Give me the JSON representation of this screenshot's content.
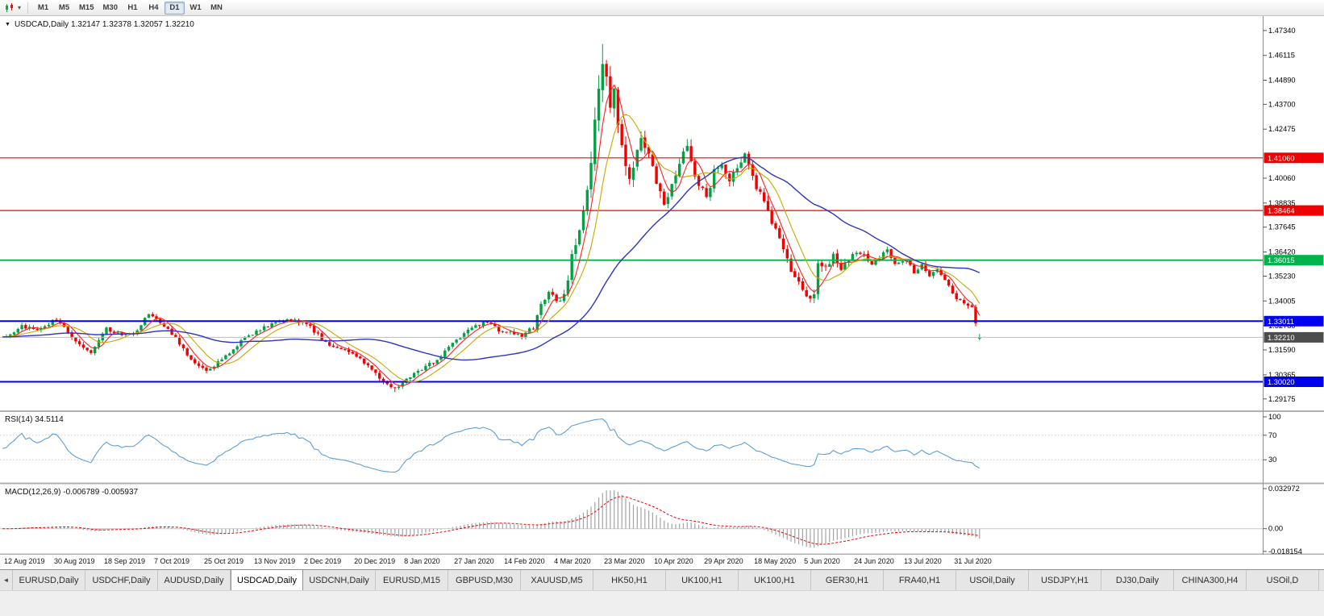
{
  "toolbar": {
    "timeframes": [
      "M1",
      "M5",
      "M15",
      "M30",
      "H1",
      "H4",
      "D1",
      "W1",
      "MN"
    ],
    "active_timeframe": "D1",
    "dropdown_glyph": "▾"
  },
  "chart": {
    "title_marker": "▼",
    "symbol_line": "USDCAD,Daily 1.32147 1.32378 1.32057 1.32210",
    "last_ohlc": {
      "o": 1.32147,
      "h": 1.32378,
      "l": 1.32057,
      "c": 1.3221
    },
    "bid": {
      "price": 1.3221,
      "label": "1.32210",
      "line_color": "#bdbdbd",
      "tag_color": "#4d4d4d"
    },
    "candle_up": "#00a245",
    "candle_down": "#f20000",
    "price_ticks": [
      "1.47340",
      "1.46115",
      "1.44890",
      "1.43700",
      "1.42475",
      "1.40060",
      "1.38835",
      "1.37645",
      "1.36420",
      "1.35230",
      "1.34005",
      "1.32780",
      "1.31590",
      "1.30365",
      "1.29175"
    ],
    "price_tick_values": [
      1.4734,
      1.46115,
      1.4489,
      1.437,
      1.42475,
      1.4006,
      1.38835,
      1.37645,
      1.3642,
      1.3523,
      1.34005,
      1.3278,
      1.3159,
      1.30365,
      1.29175
    ],
    "hlines": [
      {
        "price": 1.4106,
        "label": "1.41060",
        "color": "#f00000",
        "width": 1.2
      },
      {
        "price": 1.38464,
        "label": "1.38464",
        "color": "#f00000",
        "width": 1.2
      },
      {
        "price": 1.36015,
        "label": "1.36015",
        "color": "#00b44c",
        "width": 1.8
      },
      {
        "price": 1.33011,
        "label": "1.33011",
        "color": "#0000f0",
        "width": 2
      },
      {
        "price": 1.3002,
        "label": "1.30020",
        "color": "#0000f0",
        "width": 2
      }
    ]
  },
  "chart_data": {
    "type": "candlestick",
    "symbol": "USDCAD",
    "timeframe": "Daily",
    "candle_count": 254,
    "price_range": {
      "top": 1.4805,
      "bottom": 1.2865
    },
    "base_volatility": 0.0017,
    "close_anchors": [
      [
        0,
        1.3225
      ],
      [
        4,
        1.328
      ],
      [
        8,
        1.3255
      ],
      [
        13,
        1.331
      ],
      [
        16,
        1.325
      ],
      [
        19,
        1.3185
      ],
      [
        22,
        1.315
      ],
      [
        26,
        1.3265
      ],
      [
        30,
        1.3235
      ],
      [
        34,
        1.325
      ],
      [
        37,
        1.334
      ],
      [
        39,
        1.3305
      ],
      [
        43,
        1.324
      ],
      [
        47,
        1.3135
      ],
      [
        50,
        1.3085
      ],
      [
        52,
        1.306
      ],
      [
        55,
        1.3095
      ],
      [
        58,
        1.315
      ],
      [
        62,
        1.3215
      ],
      [
        65,
        1.3255
      ],
      [
        70,
        1.3295
      ],
      [
        74,
        1.331
      ],
      [
        78,
        1.329
      ],
      [
        82,
        1.3215
      ],
      [
        85,
        1.317
      ],
      [
        88,
        1.3165
      ],
      [
        91,
        1.313
      ],
      [
        95,
        1.3065
      ],
      [
        98,
        1.2995
      ],
      [
        101,
        1.2965
      ],
      [
        104,
        1.302
      ],
      [
        108,
        1.3065
      ],
      [
        112,
        1.311
      ],
      [
        117,
        1.3205
      ],
      [
        121,
        1.327
      ],
      [
        125,
        1.33
      ],
      [
        128,
        1.3255
      ],
      [
        131,
        1.3245
      ],
      [
        134,
        1.323
      ],
      [
        137,
        1.327
      ],
      [
        139,
        1.3395
      ],
      [
        141,
        1.344
      ],
      [
        143,
        1.3405
      ],
      [
        145,
        1.3425
      ],
      [
        147,
        1.361
      ],
      [
        149,
        1.376
      ],
      [
        151,
        1.394
      ],
      [
        153,
        1.426
      ],
      [
        154,
        1.446
      ],
      [
        155,
        1.458
      ],
      [
        156,
        1.449
      ],
      [
        157,
        1.436
      ],
      [
        158,
        1.443
      ],
      [
        159,
        1.429
      ],
      [
        160,
        1.417
      ],
      [
        161,
        1.406
      ],
      [
        162,
        1.3995
      ],
      [
        163,
        1.4085
      ],
      [
        164,
        1.416
      ],
      [
        165,
        1.423
      ],
      [
        166,
        1.418
      ],
      [
        167,
        1.412
      ],
      [
        169,
        1.3965
      ],
      [
        171,
        1.3875
      ],
      [
        173,
        1.3985
      ],
      [
        175,
        1.409
      ],
      [
        177,
        1.4165
      ],
      [
        179,
        1.4025
      ],
      [
        182,
        1.3905
      ],
      [
        184,
        1.4035
      ],
      [
        186,
        1.409
      ],
      [
        188,
        1.3985
      ],
      [
        190,
        1.406
      ],
      [
        192,
        1.4115
      ],
      [
        194,
        1.4015
      ],
      [
        195,
        1.3955
      ],
      [
        197,
        1.3895
      ],
      [
        199,
        1.3785
      ],
      [
        201,
        1.3725
      ],
      [
        203,
        1.3615
      ],
      [
        205,
        1.3505
      ],
      [
        207,
        1.3455
      ],
      [
        208,
        1.3425
      ],
      [
        209,
        1.3395
      ],
      [
        210,
        1.3415
      ],
      [
        211,
        1.359
      ],
      [
        213,
        1.3555
      ],
      [
        215,
        1.3625
      ],
      [
        217,
        1.3565
      ],
      [
        219,
        1.3605
      ],
      [
        221,
        1.3645
      ],
      [
        223,
        1.3625
      ],
      [
        225,
        1.3585
      ],
      [
        227,
        1.3615
      ],
      [
        229,
        1.3655
      ],
      [
        231,
        1.3585
      ],
      [
        234,
        1.3595
      ],
      [
        236,
        1.3545
      ],
      [
        238,
        1.358
      ],
      [
        240,
        1.3515
      ],
      [
        242,
        1.3565
      ],
      [
        244,
        1.3505
      ],
      [
        246,
        1.3445
      ],
      [
        247,
        1.3415
      ],
      [
        249,
        1.3395
      ],
      [
        251,
        1.337
      ],
      [
        252,
        1.329
      ],
      [
        253,
        1.3221
      ]
    ],
    "volatility_anchors": [
      [
        0,
        1
      ],
      [
        135,
        1
      ],
      [
        142,
        1.6
      ],
      [
        147,
        2.6
      ],
      [
        151,
        3.8
      ],
      [
        154,
        5
      ],
      [
        158,
        4.6
      ],
      [
        163,
        3.6
      ],
      [
        170,
        3
      ],
      [
        178,
        2.6
      ],
      [
        186,
        2.2
      ],
      [
        196,
        2
      ],
      [
        204,
        1.9
      ],
      [
        211,
        2.4
      ],
      [
        216,
        1.6
      ],
      [
        224,
        1.3
      ],
      [
        234,
        1.1
      ],
      [
        246,
        1.1
      ],
      [
        253,
        1.2
      ]
    ],
    "extremes": [
      {
        "index": 155,
        "high": 1.4668
      },
      {
        "index": 101,
        "low": 1.2951
      }
    ],
    "ma": [
      {
        "name": "fast",
        "period": 5,
        "color": "#ff2020",
        "width": 1.1
      },
      {
        "name": "mid",
        "period": 10,
        "color": "#c8a800",
        "width": 1.1
      },
      {
        "name": "slow",
        "period": 40,
        "color": "#2d35c0",
        "width": 1.4
      }
    ],
    "rsi_period": 14,
    "macd": {
      "fast": 12,
      "slow": 26,
      "signal": 9
    }
  },
  "rsi_panel": {
    "label": "RSI(14) 34.5114",
    "ticks": [
      "100",
      "70",
      "30"
    ],
    "tick_values": [
      100,
      70,
      30
    ],
    "levels": [
      70,
      30
    ],
    "line_color": "#5f9fd6"
  },
  "macd_panel": {
    "label": "MACD(12,26,9) -0.006789 -0.005937",
    "ticks": [
      "0.032972",
      "0.00",
      "-0.018154"
    ],
    "tick_values": [
      0.032972,
      0,
      -0.018154
    ],
    "range": [
      -0.0195,
      0.0345
    ],
    "bar_color": "#a4a4a4",
    "signal_color": "#f00000"
  },
  "time_axis": [
    "12 Aug 2019",
    "30 Aug 2019",
    "18 Sep 2019",
    "7 Oct 2019",
    "25 Oct 2019",
    "13 Nov 2019",
    "2 Dec 2019",
    "20 Dec 2019",
    "8 Jan 2020",
    "27 Jan 2020",
    "14 Feb 2020",
    "4 Mar 2020",
    "23 Mar 2020",
    "10 Apr 2020",
    "29 Apr 2020",
    "18 May 2020",
    "5 Jun 2020",
    "24 Jun 2020",
    "13 Jul 2020",
    "31 Jul 2020"
  ],
  "tabs": {
    "scroll_left_glyph": "◄",
    "active_index": 3,
    "items": [
      "EURUSD,Daily",
      "USDCHF,Daily",
      "AUDUSD,Daily",
      "USDCAD,Daily",
      "USDCNH,Daily",
      "EURUSD,M15",
      "GBPUSD,M30",
      "XAUUSD,M5",
      "HK50,H1",
      "UK100,H1",
      "UK100,H1",
      "GER30,H1",
      "FRA40,H1",
      "USOil,Daily",
      "USDJPY,H1",
      "DJ30,Daily",
      "CHINA300,H4",
      "USOil,D"
    ]
  }
}
